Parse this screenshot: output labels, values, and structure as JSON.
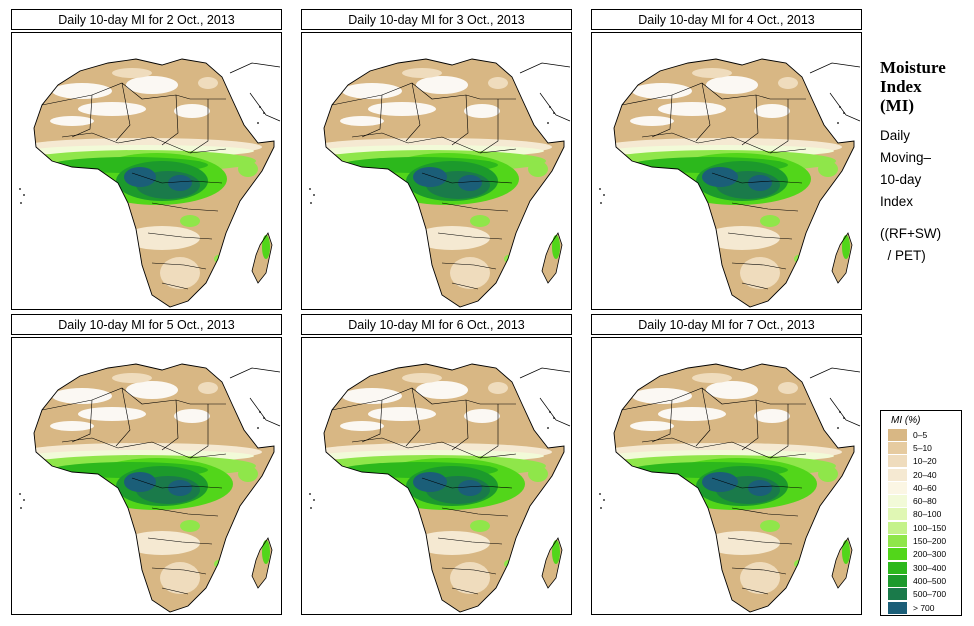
{
  "panels": [
    {
      "title": "Daily 10-day MI for  2 Oct., 2013",
      "region": "Africa"
    },
    {
      "title": "Daily 10-day MI for  3 Oct., 2013",
      "region": "Africa"
    },
    {
      "title": "Daily 10-day MI for  4 Oct., 2013",
      "region": "Africa"
    },
    {
      "title": "Daily 10-day MI for  5 Oct., 2013",
      "region": "Africa"
    },
    {
      "title": "Daily 10-day MI for  6 Oct., 2013",
      "region": "Africa"
    },
    {
      "title": "Daily 10-day MI for  7 Oct., 2013",
      "region": "Africa"
    }
  ],
  "side": {
    "title_lines": [
      "Moisture",
      "Index",
      "(MI)"
    ],
    "desc_lines": [
      "Daily",
      "Moving–",
      "10-day",
      "Index"
    ],
    "formula_lines": [
      "((RF+SW)",
      "  / PET)"
    ]
  },
  "legend": {
    "title": "MI (%)",
    "items": [
      {
        "label": "0–5",
        "color": "#d8b784"
      },
      {
        "label": "5–10",
        "color": "#e6cba0"
      },
      {
        "label": "10–20",
        "color": "#efdcbd"
      },
      {
        "label": "20–40",
        "color": "#f5e9d2"
      },
      {
        "label": "40–60",
        "color": "#fbf6e4"
      },
      {
        "label": "60–80",
        "color": "#f2fad8"
      },
      {
        "label": "80–100",
        "color": "#e0f7b4"
      },
      {
        "label": "100–150",
        "color": "#c4f28a"
      },
      {
        "label": "150–200",
        "color": "#8fe64a"
      },
      {
        "label": "200–300",
        "color": "#52d61a"
      },
      {
        "label": "300–400",
        "color": "#2cb81c"
      },
      {
        "label": "400–500",
        "color": "#1c9a2c"
      },
      {
        "label": "500–700",
        "color": "#1a7a4a"
      },
      {
        "label": "> 700",
        "color": "#1b5e78"
      }
    ]
  }
}
